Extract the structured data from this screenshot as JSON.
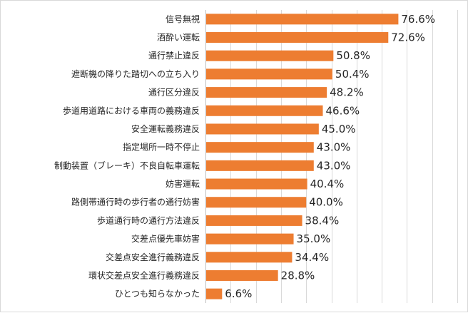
{
  "chart_data": {
    "type": "bar",
    "orientation": "horizontal",
    "categories": [
      "信号無視",
      "酒酔い運転",
      "通行禁止違反",
      "遮断機の降りた踏切への立ち入り",
      "通行区分違反",
      "歩道用道路における車両の義務違反",
      "安全運転義務違反",
      "指定場所一時不停止",
      "制動装置（ブレーキ）不良自転車運転",
      "妨害運転",
      "路側帯通行時の歩行者の通行妨害",
      "歩道通行時の通行方法違反",
      "交差点優先車妨害",
      "交差点安全進行義務違反",
      "環状交差点安全進行義務違反",
      "ひとつも知らなかった"
    ],
    "values": [
      76.6,
      72.6,
      50.8,
      50.4,
      48.2,
      46.6,
      45.0,
      43.0,
      43.0,
      40.4,
      40.0,
      38.4,
      35.0,
      34.4,
      28.8,
      6.6
    ],
    "value_labels": [
      "76.6%",
      "72.6%",
      "50.8%",
      "50.4%",
      "48.2%",
      "46.6%",
      "45.0%",
      "43.0%",
      "43.0%",
      "40.4%",
      "40.0%",
      "38.4%",
      "35.0%",
      "34.4%",
      "28.8%",
      "6.6%"
    ],
    "xlim": [
      0,
      100
    ],
    "grid": true,
    "legend": "none",
    "bar_color": "#ED7D31"
  }
}
